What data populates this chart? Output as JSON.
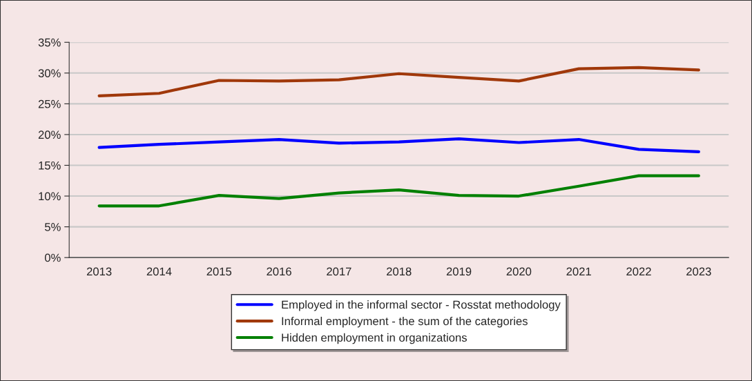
{
  "chart_data": {
    "type": "line",
    "categories": [
      "2013",
      "2014",
      "2015",
      "2016",
      "2017",
      "2018",
      "2019",
      "2020",
      "2021",
      "2022",
      "2023"
    ],
    "series": [
      {
        "name": "Employed in the informal sector - Rosstat methodology",
        "color": "#0000ff",
        "values": [
          17.9,
          18.4,
          18.8,
          19.2,
          18.6,
          18.8,
          19.3,
          18.7,
          19.2,
          17.6,
          17.2
        ]
      },
      {
        "name": "Informal employment - the sum of the categories",
        "color": "#a0380a",
        "values": [
          26.3,
          26.7,
          28.8,
          28.7,
          28.9,
          29.9,
          29.3,
          28.7,
          30.7,
          30.9,
          30.5
        ]
      },
      {
        "name": "Hidden employment in organizations",
        "color": "#008000",
        "values": [
          8.4,
          8.4,
          10.1,
          9.6,
          10.5,
          11.0,
          10.1,
          10.0,
          11.6,
          13.3,
          13.3
        ]
      }
    ],
    "ylim": [
      0,
      35
    ],
    "yticks": [
      {
        "value": 0,
        "label": "0%"
      },
      {
        "value": 5,
        "label": "5%"
      },
      {
        "value": 10,
        "label": "10%"
      },
      {
        "value": 15,
        "label": "15%"
      },
      {
        "value": 20,
        "label": "20%"
      },
      {
        "value": 25,
        "label": "25%"
      },
      {
        "value": 30,
        "label": "30%"
      },
      {
        "value": 35,
        "label": "35%"
      }
    ],
    "grid": "y",
    "legend": "bottom",
    "marker": "none",
    "line_style": "solid"
  }
}
